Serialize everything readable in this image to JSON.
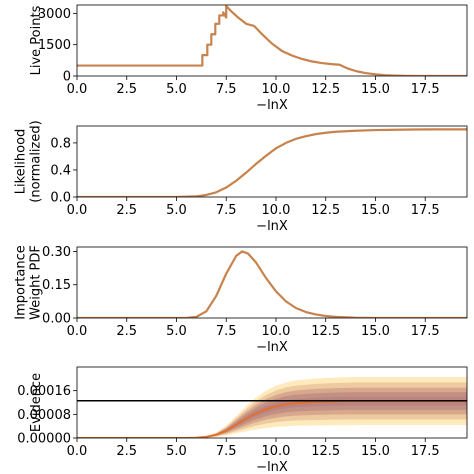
{
  "chart_data": [
    {
      "type": "line",
      "xlabel": "−lnX",
      "ylabel": [
        "Live Points"
      ],
      "xlim": [
        0,
        19.6
      ],
      "ylim": [
        0,
        3400
      ],
      "xticks": [
        "0.0",
        "2.5",
        "5.0",
        "7.5",
        "10.0",
        "12.5",
        "15.0",
        "17.5"
      ],
      "yticks": [
        "0",
        "1500",
        "3000"
      ],
      "series": [
        {
          "color": "#c8824c",
          "x": [
            0,
            6.3,
            6.3,
            6.55,
            6.55,
            6.75,
            6.75,
            6.95,
            6.95,
            7.15,
            7.15,
            7.35,
            7.35,
            7.5,
            7.5,
            7.75,
            8.1,
            8.5,
            8.9,
            9.3,
            9.8,
            10.3,
            10.8,
            11.3,
            11.8,
            12.3,
            12.8,
            13.2,
            13.6,
            14.0,
            14.5,
            15.0,
            15.5,
            16.0,
            16.5,
            17.0,
            17.5,
            18.0,
            19.6
          ],
          "y": [
            500,
            500,
            1000,
            1000,
            1500,
            1500,
            2000,
            2000,
            2500,
            2500,
            2900,
            2900,
            3050,
            2800,
            3350,
            3100,
            2800,
            2500,
            2400,
            2000,
            1550,
            1200,
            980,
            820,
            700,
            620,
            570,
            540,
            360,
            240,
            140,
            80,
            40,
            20,
            8,
            3,
            1,
            0,
            0
          ]
        }
      ]
    },
    {
      "type": "line",
      "xlabel": "−lnX",
      "ylabel": [
        "Likelihood",
        "(normalized)"
      ],
      "xlim": [
        0,
        19.6
      ],
      "ylim": [
        0,
        1.05
      ],
      "xticks": [
        "0.0",
        "2.5",
        "5.0",
        "7.5",
        "10.0",
        "12.5",
        "15.0",
        "17.5"
      ],
      "yticks": [
        "0.0",
        "0.4",
        "0.8"
      ],
      "series": [
        {
          "color": "#c8824c",
          "x": [
            0,
            5.0,
            6.0,
            6.5,
            7.0,
            7.5,
            8.0,
            8.5,
            9.0,
            9.5,
            10.0,
            10.5,
            11.0,
            11.5,
            12.0,
            12.5,
            13.0,
            14.0,
            15.0,
            16.0,
            17.0,
            18.0,
            19.6
          ],
          "y": [
            0,
            0,
            0.01,
            0.03,
            0.07,
            0.14,
            0.24,
            0.36,
            0.49,
            0.61,
            0.72,
            0.8,
            0.86,
            0.9,
            0.93,
            0.95,
            0.965,
            0.98,
            0.99,
            0.995,
            0.998,
            1.0,
            1.0
          ]
        }
      ]
    },
    {
      "type": "line",
      "xlabel": "−lnX",
      "ylabel": [
        "Importance",
        "Weight PDF"
      ],
      "xlim": [
        0,
        19.6
      ],
      "ylim": [
        0,
        0.32
      ],
      "xticks": [
        "0.0",
        "2.5",
        "5.0",
        "7.5",
        "10.0",
        "12.5",
        "15.0",
        "17.5"
      ],
      "yticks": [
        "0.00",
        "0.15",
        "0.30"
      ],
      "series": [
        {
          "color": "#c8824c",
          "x": [
            0,
            5.5,
            6.0,
            6.5,
            7.0,
            7.5,
            8.0,
            8.3,
            8.6,
            9.0,
            9.5,
            10.0,
            10.5,
            11.0,
            11.5,
            12.0,
            12.5,
            13.0,
            14.0,
            15.0,
            19.6
          ],
          "y": [
            0,
            0,
            0.005,
            0.03,
            0.1,
            0.2,
            0.28,
            0.3,
            0.29,
            0.25,
            0.18,
            0.12,
            0.075,
            0.045,
            0.027,
            0.016,
            0.009,
            0.005,
            0.001,
            0,
            0
          ]
        }
      ]
    },
    {
      "type": "area",
      "xlabel": "−lnX",
      "ylabel": [
        "Evidence"
      ],
      "xlim": [
        0,
        19.6
      ],
      "ylim": [
        0,
        0.00024
      ],
      "xticks": [
        "0.0",
        "2.5",
        "5.0",
        "7.5",
        "10.0",
        "12.5",
        "15.0",
        "17.5"
      ],
      "yticks": [
        "0.00000",
        "0.00008",
        "0.00016"
      ],
      "reference_line": 0.000126,
      "x": [
        0,
        5.5,
        6.0,
        6.5,
        7.0,
        7.5,
        8.0,
        8.5,
        9.0,
        9.5,
        10.0,
        10.5,
        11.0,
        12.0,
        13.0,
        14.0,
        15.0,
        17.5,
        19.6
      ],
      "mean": [
        0,
        0,
        1e-06,
        4e-06,
        1.1e-05,
        2.5e-05,
        4.5e-05,
        6.5e-05,
        8.3e-05,
        9.7e-05,
        0.000107,
        0.000114,
        0.000118,
        0.000122,
        0.000124,
        0.000125,
        0.000125,
        0.000125,
        0.000125
      ],
      "bands": [
        {
          "color": "#ffe6b3",
          "spread": 0.65
        },
        {
          "color": "#eac49a",
          "spread": 0.5
        },
        {
          "color": "#d4a28a",
          "spread": 0.36
        },
        {
          "color": "#c08c82",
          "spread": 0.24
        },
        {
          "color": "#b98480",
          "spread": 0.12
        }
      ],
      "mean_color": "#e07030"
    }
  ]
}
